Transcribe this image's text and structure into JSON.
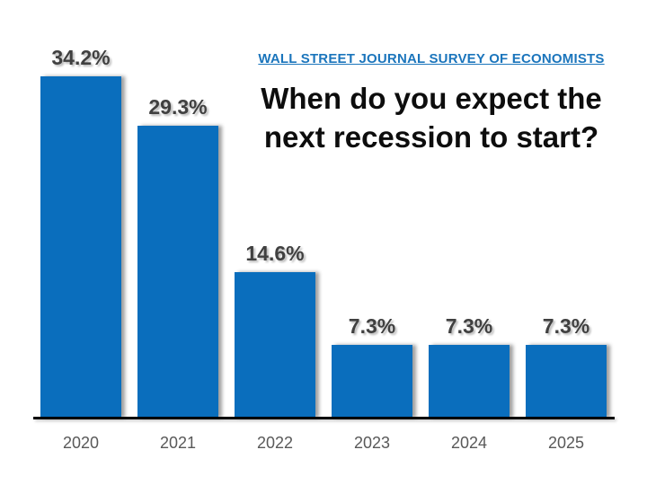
{
  "header": {
    "label": "WALL STREET JOURNAL SURVEY OF ECONOMISTS",
    "color": "#1B75BC"
  },
  "chart_data": {
    "type": "bar",
    "title": "When do you expect the next recession to start?",
    "title_lines": [
      "When do you expect the",
      "next recession to start?"
    ],
    "subtitle": "WALL STREET JOURNAL SURVEY OF ECONOMISTS",
    "categories": [
      "2020",
      "2021",
      "2022",
      "2023",
      "2024",
      "2025"
    ],
    "values": [
      34.2,
      29.3,
      14.6,
      7.3,
      7.3,
      7.3
    ],
    "value_labels": [
      "34.2%",
      "29.3%",
      "14.6%",
      "7.3%",
      "7.3%",
      "7.3%"
    ],
    "xlabel": "",
    "ylabel": "",
    "ylim": [
      0,
      36
    ],
    "grid": false,
    "legend": "none",
    "bar_color": "#0A6EBD",
    "value_label_color": "#404040",
    "category_label_color": "#595959",
    "axis_line_color": "#000000",
    "background_color": "#ffffff"
  }
}
